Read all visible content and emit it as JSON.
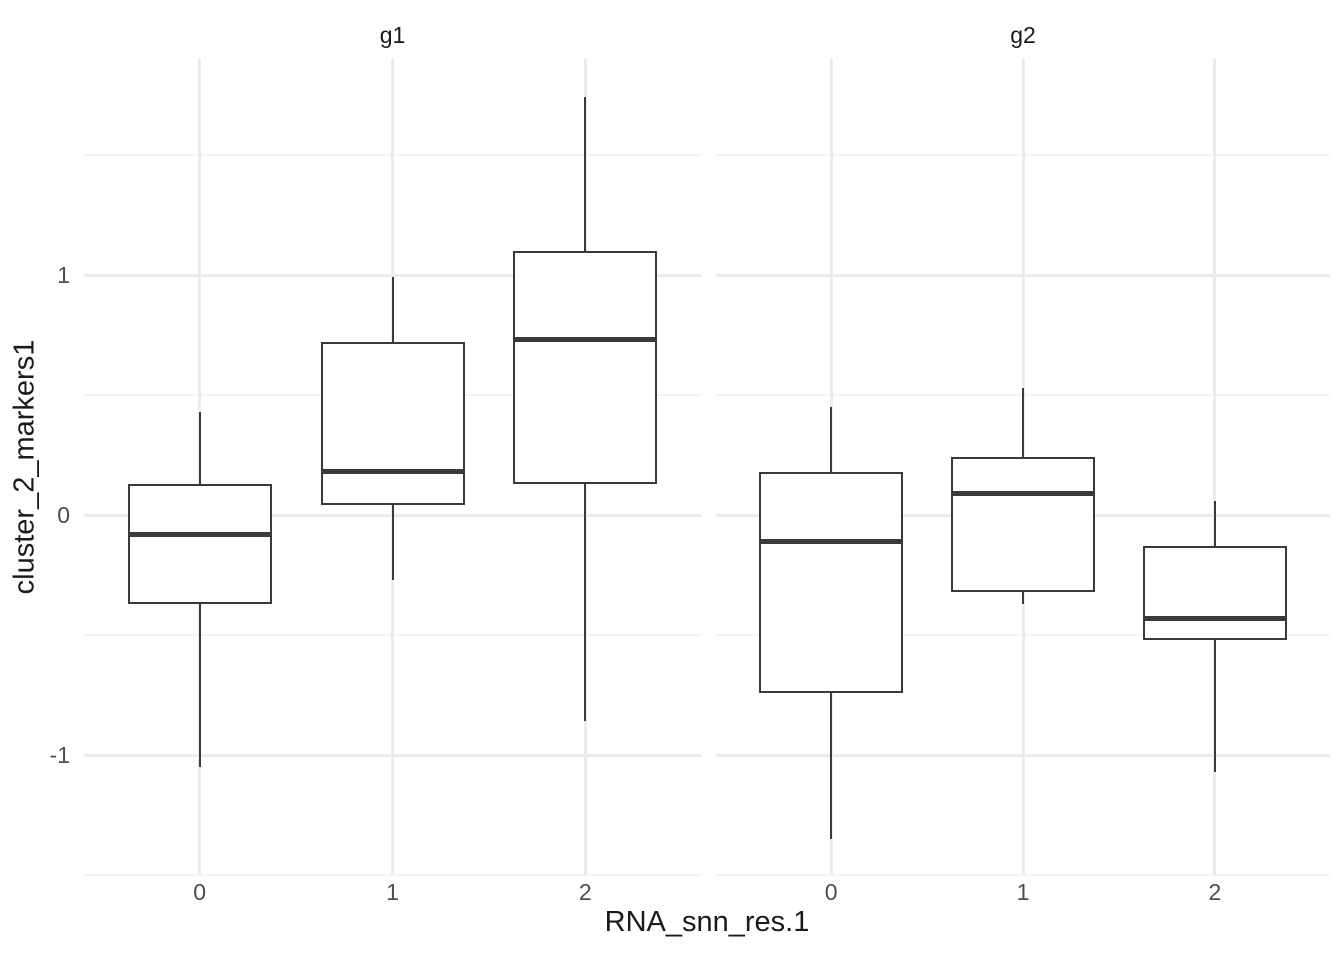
{
  "chart_data": {
    "type": "boxplot",
    "title": "",
    "xlabel": "RNA_snn_res.1",
    "ylabel": "cluster_2_markers1",
    "categories": [
      "0",
      "1",
      "2"
    ],
    "y_ticks": [
      -1,
      0,
      1
    ],
    "y_tick_labels": [
      "-1",
      "0",
      "1"
    ],
    "y_minor_ticks": [
      -1.5,
      -0.5,
      0.5,
      1.5
    ],
    "ylim": [
      -1.5,
      1.9
    ],
    "grid": true,
    "legend": false,
    "facets": [
      {
        "label": "g1",
        "boxes": [
          {
            "category": "0",
            "whisker_low": -1.05,
            "q1": -0.37,
            "median": -0.08,
            "q3": 0.13,
            "whisker_high": 0.43
          },
          {
            "category": "1",
            "whisker_low": -0.27,
            "q1": 0.04,
            "median": 0.18,
            "q3": 0.72,
            "whisker_high": 0.99
          },
          {
            "category": "2",
            "whisker_low": -0.86,
            "q1": 0.13,
            "median": 0.73,
            "q3": 1.1,
            "whisker_high": 1.74
          }
        ]
      },
      {
        "label": "g2",
        "boxes": [
          {
            "category": "0",
            "whisker_low": -1.35,
            "q1": -0.74,
            "median": -0.11,
            "q3": 0.18,
            "whisker_high": 0.45
          },
          {
            "category": "1",
            "whisker_low": -0.37,
            "q1": -0.32,
            "median": 0.09,
            "q3": 0.24,
            "whisker_high": 0.53
          },
          {
            "category": "2",
            "whisker_low": -1.07,
            "q1": -0.52,
            "median": -0.43,
            "q3": -0.13,
            "whisker_high": 0.06
          }
        ]
      }
    ],
    "colors": {
      "box_line": "#3A3A3A",
      "box_fill": "#FFFFFF",
      "grid_major": "#EBEBEB",
      "grid_minor": "#F4F4F4",
      "tick_label": "#4D4D4D",
      "title_text": "#1A1A1A",
      "background": "#FFFFFF"
    }
  }
}
